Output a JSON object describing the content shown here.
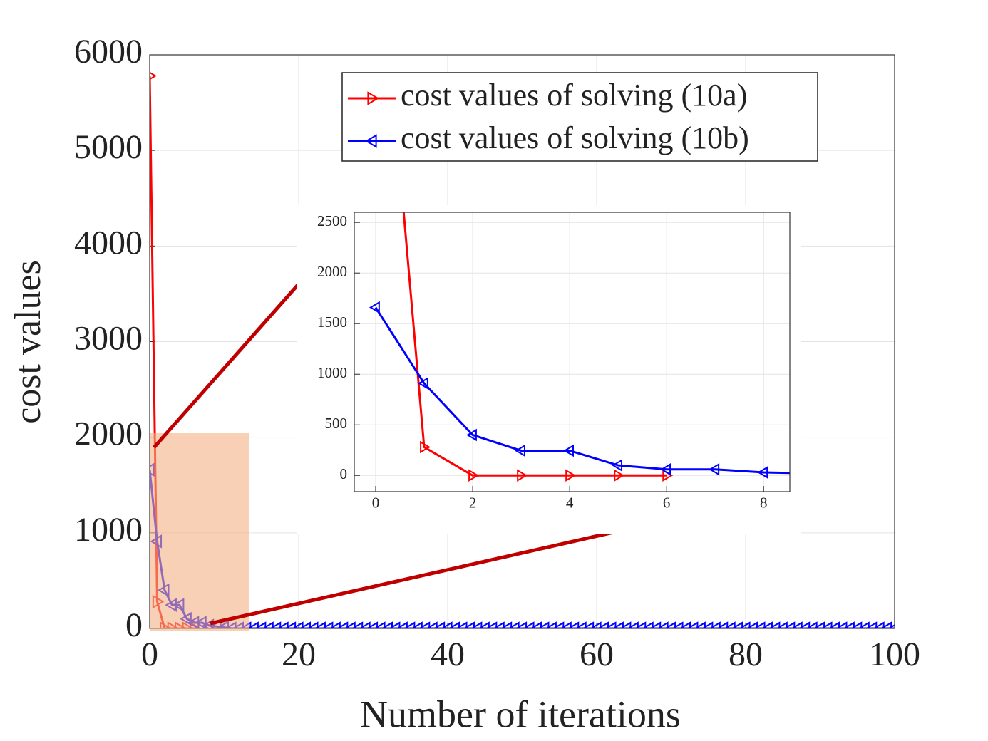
{
  "chart_data": [
    {
      "type": "line",
      "xlabel": "Number of iterations",
      "ylabel": "cost values",
      "xlim": [
        0,
        100
      ],
      "xticks": [
        0,
        20,
        40,
        60,
        80,
        100
      ],
      "ylim": [
        0,
        6000
      ],
      "yticks": [
        0,
        1000,
        2000,
        3000,
        4000,
        5000,
        6000
      ],
      "grid": true,
      "legend": "upper right",
      "series": [
        {
          "name": "cost values of solving (10a)",
          "color": "#ff0000",
          "marker": "triangle-right",
          "x": [
            0,
            1,
            2,
            3,
            4,
            5,
            6
          ],
          "values": [
            5780,
            280,
            0,
            0,
            0,
            0,
            0
          ]
        },
        {
          "name": "cost values of solving (10b)",
          "color": "#0000ff",
          "marker": "triangle-left",
          "x": [
            0,
            1,
            2,
            3,
            4,
            5,
            6,
            7,
            8,
            9,
            10,
            11,
            12,
            13,
            14,
            15,
            16,
            17,
            18,
            19,
            20,
            21,
            22,
            23,
            24,
            25,
            26,
            27,
            28,
            29,
            30,
            31,
            32,
            33,
            34,
            35,
            36,
            37,
            38,
            39,
            40,
            41,
            42,
            43,
            44,
            45,
            46,
            47,
            48,
            49,
            50,
            51,
            52,
            53,
            54,
            55,
            56,
            57,
            58,
            59,
            60,
            61,
            62,
            63,
            64,
            65,
            66,
            67,
            68,
            69,
            70,
            71,
            72,
            73,
            74,
            75,
            76,
            77,
            78,
            79,
            80,
            81,
            82,
            83,
            84,
            85,
            86,
            87,
            88,
            89,
            90,
            91,
            92,
            93,
            94,
            95,
            96,
            97,
            98,
            99,
            100
          ],
          "values": [
            1660,
            910,
            400,
            245,
            245,
            100,
            60,
            60,
            30,
            20,
            10,
            0,
            0,
            0,
            0,
            0,
            0,
            0,
            0,
            0,
            0,
            0,
            0,
            0,
            0,
            0,
            0,
            0,
            0,
            0,
            0,
            0,
            0,
            0,
            0,
            0,
            0,
            0,
            0,
            0,
            0,
            0,
            0,
            0,
            0,
            0,
            0,
            0,
            0,
            0,
            0,
            0,
            0,
            0,
            0,
            0,
            0,
            0,
            0,
            0,
            0,
            0,
            0,
            0,
            0,
            0,
            0,
            0,
            0,
            0,
            0,
            0,
            0,
            0,
            0,
            0,
            0,
            0,
            0,
            0,
            0,
            0,
            0,
            0,
            0,
            0,
            0,
            0,
            0,
            0,
            0,
            0,
            0,
            0,
            0,
            0,
            0,
            0,
            0,
            0,
            0
          ]
        }
      ]
    },
    {
      "type": "line-inset",
      "xlim": [
        -0.44,
        8.54
      ],
      "xticks": [
        0,
        2,
        4,
        6,
        8
      ],
      "ylim": [
        -160,
        2600
      ],
      "yticks": [
        0,
        500,
        1000,
        1500,
        2000,
        2500
      ],
      "grid": true
    }
  ]
}
